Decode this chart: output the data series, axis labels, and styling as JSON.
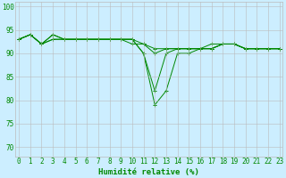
{
  "xlabel": "Humidité relative (%)",
  "ylabel": "",
  "background_color": "#cceeff",
  "grid_color": "#bbbbbb",
  "line_color": "#008800",
  "xlim": [
    0,
    23
  ],
  "ylim": [
    68,
    101
  ],
  "yticks": [
    70,
    75,
    80,
    85,
    90,
    95,
    100
  ],
  "xticks": [
    0,
    1,
    2,
    3,
    4,
    5,
    6,
    7,
    8,
    9,
    10,
    11,
    12,
    13,
    14,
    15,
    16,
    17,
    18,
    19,
    20,
    21,
    22,
    23
  ],
  "tick_fontsize": 5.5,
  "xlabel_fontsize": 6.5,
  "series": [
    [
      93,
      94,
      92,
      94,
      93,
      93,
      93,
      93,
      93,
      93,
      93,
      90,
      79,
      82,
      90,
      90,
      91,
      91,
      92,
      92,
      91,
      91,
      91,
      91
    ],
    [
      93,
      94,
      92,
      94,
      93,
      93,
      93,
      93,
      93,
      93,
      93,
      90,
      82,
      90,
      91,
      91,
      91,
      92,
      92,
      92,
      91,
      91,
      91,
      91
    ],
    [
      93,
      94,
      92,
      93,
      93,
      93,
      93,
      93,
      93,
      93,
      92,
      92,
      90,
      91,
      91,
      91,
      91,
      91,
      92,
      92,
      91,
      91,
      91,
      91
    ],
    [
      93,
      94,
      92,
      93,
      93,
      93,
      93,
      93,
      93,
      93,
      93,
      92,
      91,
      91,
      91,
      91,
      91,
      91,
      92,
      92,
      91,
      91,
      91,
      91
    ]
  ]
}
